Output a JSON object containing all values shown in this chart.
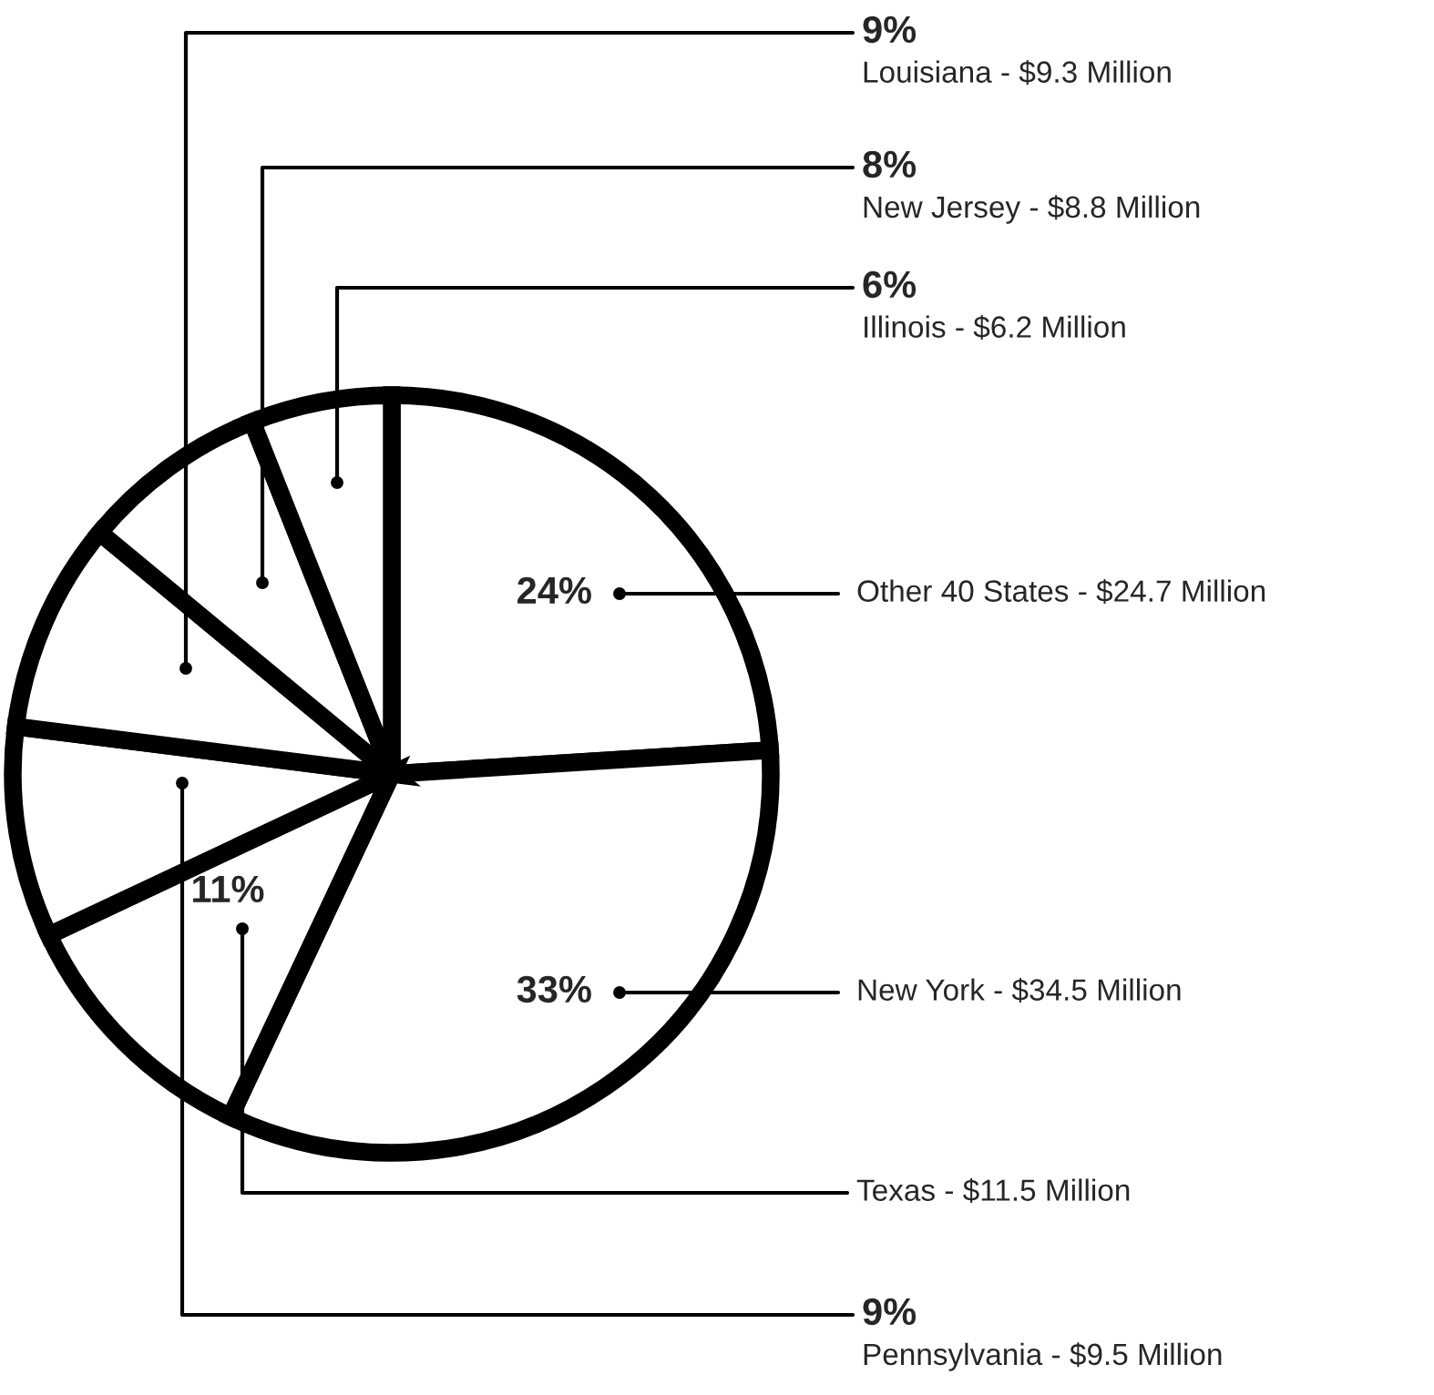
{
  "chart_data": {
    "type": "pie",
    "categories": [
      "Other 40 States - $24.7 Million",
      "New York - $34.5 Million",
      "Texas - $11.5 Million",
      "Pennsylvania - $9.5 Million",
      "Louisiana - $9.3 Million",
      "New Jersey - $8.8 Million",
      "Illinois - $6.2 Million"
    ],
    "values": [
      24,
      33,
      11,
      9,
      9,
      8,
      6
    ],
    "value_labels": [
      "24%",
      "33%",
      "11%",
      "9%",
      "9%",
      "8%",
      "6%"
    ],
    "colors": [
      "#ffffff",
      "#ffffff",
      "#ffffff",
      "#ffffff",
      "#ffffff",
      "#ffffff",
      "#ffffff"
    ]
  }
}
